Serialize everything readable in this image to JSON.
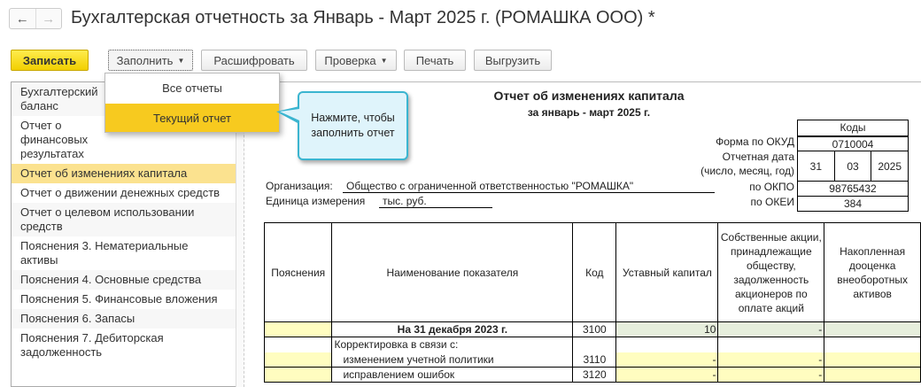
{
  "window": {
    "title": "Бухгалтерская отчетность за Январь - Март 2025 г. (РОМАШКА ООО) *",
    "back": "←",
    "forward": "→"
  },
  "toolbar": {
    "save": "Записать",
    "fill": "Заполнить",
    "decode": "Расшифровать",
    "check": "Проверка",
    "print": "Печать",
    "export": "Выгрузить"
  },
  "fill_menu": {
    "items": [
      "Все отчеты",
      "Текущий отчет"
    ],
    "highlighted": "Текущий отчет"
  },
  "callout": {
    "text": "Нажмите, чтобы заполнить отчет"
  },
  "sidebar": {
    "items": [
      {
        "label": "Бухгалтерский баланс"
      },
      {
        "label": "Отчет о финансовых результатах"
      },
      {
        "label": "Отчет об изменениях капитала",
        "selected": true
      },
      {
        "label": "Отчет о движении денежных средств"
      },
      {
        "label": "Отчет о целевом использовании средств"
      },
      {
        "label": "Пояснения 3. Нематериальные активы"
      },
      {
        "label": "Пояснения 4. Основные средства"
      },
      {
        "label": "Пояснения 5. Финансовые вложения"
      },
      {
        "label": "Пояснения 6. Запасы"
      },
      {
        "label": "Пояснения 7. Дебиторская задолженность"
      }
    ]
  },
  "report": {
    "title": "Отчет об изменениях капитала",
    "period": "за январь - март 2025 г.",
    "codes_header": "Коды",
    "okud_label": "Форма по ОКУД",
    "okud": "0710004",
    "date_label1": "Отчетная дата",
    "date_label2": "(число, месяц, год)",
    "day": "31",
    "month": "03",
    "year": "2025",
    "okpo_label": "по ОКПО",
    "okpo": "98765432",
    "okei_label": "по ОКЕИ",
    "okei": "384",
    "org_label": "Организация:",
    "org": "Общество с ограниченной ответственностью \"РОМАШКА\"",
    "unit_label": "Единица измерения",
    "unit": "тыс. руб."
  },
  "table": {
    "headers": [
      "Пояснения",
      "Наименование показателя",
      "Код",
      "Уставный капитал",
      "Собственные акции, принадлежащие обществу, задолженность акционеров по оплате акций",
      "Накопленная дооценка внеоборотных активов"
    ],
    "rows": [
      {
        "name": "На 31 декабря 2023 г.",
        "code": "3100",
        "c1": "10",
        "c2": "-",
        "c3": ""
      },
      {
        "name": "Корректировка в связи с:",
        "code": "",
        "c1": "",
        "c2": "",
        "c3": ""
      },
      {
        "name": "изменением учетной политики",
        "code": "3110",
        "c1": "-",
        "c2": "-",
        "c3": ""
      },
      {
        "name": "исправлением ошибок",
        "code": "3120",
        "c1": "-",
        "c2": "-",
        "c3": ""
      }
    ]
  }
}
